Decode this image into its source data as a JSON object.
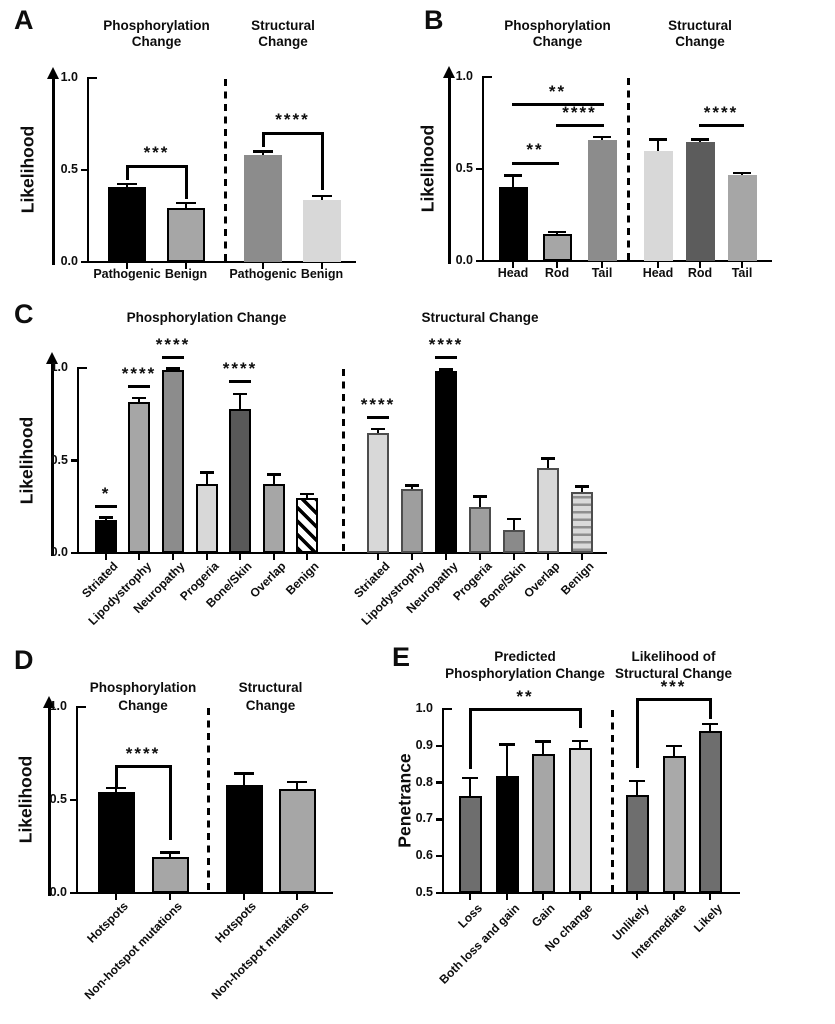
{
  "figure": {
    "description_colors": {
      "black": "#000000",
      "dark_gray": "#5c5c5c",
      "mid_gray": "#8c8c8c",
      "gray": "#a6a6a6",
      "light_gray": "#d8d8d8"
    }
  },
  "chart_data": [
    {
      "panel": "A",
      "type": "bar",
      "ylabel": "Likelihood",
      "ylim": [
        0,
        1
      ],
      "yticks": [
        {
          "v": 1.0,
          "label": "1.0"
        },
        {
          "v": 0.5,
          "label": "0.5"
        },
        {
          "v": 0.0,
          "label": "0.0"
        }
      ],
      "groups": [
        {
          "title_lines": [
            "Phosphorylation",
            "Change"
          ],
          "bars": [
            {
              "label": "Pathogenic",
              "value": 0.41,
              "error": 0.015,
              "fill": "#000000",
              "border": "none"
            },
            {
              "label": "Benign",
              "value": 0.295,
              "error": 0.025,
              "fill": "#a6a6a6",
              "border": "#000000"
            }
          ]
        },
        {
          "title_lines": [
            "Structural",
            "Change"
          ],
          "bars": [
            {
              "label": "Pathogenic",
              "value": 0.58,
              "error": 0.02,
              "fill": "#8c8c8c",
              "border": "none"
            },
            {
              "label": "Benign",
              "value": 0.335,
              "error": 0.025,
              "fill": "#d8d8d8",
              "border": "none"
            }
          ]
        }
      ],
      "annotations": [
        {
          "style": "bracket",
          "stars": "***",
          "group": 0,
          "from": 0,
          "to": 1,
          "y": 0.52,
          "drop_from": 0.445,
          "drop_to": 0.345
        },
        {
          "style": "bracket",
          "stars": "****",
          "group": 1,
          "from": 0,
          "to": 1,
          "y": 0.7,
          "drop_from": 0.625,
          "drop_to": 0.39
        }
      ]
    },
    {
      "panel": "B",
      "type": "bar",
      "ylabel": "Likelihood",
      "ylim": [
        0,
        1
      ],
      "yticks": [
        {
          "v": 1.0,
          "label": "1.0"
        },
        {
          "v": 0.5,
          "label": "0.5"
        },
        {
          "v": 0.0,
          "label": "0.0"
        }
      ],
      "groups": [
        {
          "title_lines": [
            "Phosphorylation",
            "Change"
          ],
          "bars": [
            {
              "label": "Head",
              "value": 0.4,
              "error": 0.065,
              "fill": "#000000",
              "border": "none"
            },
            {
              "label": "Rod",
              "value": 0.145,
              "error": 0.013,
              "fill": "#a6a6a6",
              "border": "#000000"
            },
            {
              "label": "Tail",
              "value": 0.655,
              "error": 0.018,
              "fill": "#8c8c8c",
              "border": "none"
            }
          ]
        },
        {
          "title_lines": [
            "Structural",
            "Change"
          ],
          "bars": [
            {
              "label": "Head",
              "value": 0.6,
              "error": 0.06,
              "fill": "#d8d8d8",
              "border": "none"
            },
            {
              "label": "Rod",
              "value": 0.645,
              "error": 0.016,
              "fill": "#5c5c5c",
              "border": "none"
            },
            {
              "label": "Tail",
              "value": 0.465,
              "error": 0.014,
              "fill": "#a6a6a6",
              "border": "none"
            }
          ]
        }
      ],
      "annotations": [
        {
          "style": "line",
          "stars": "**",
          "group": 0,
          "from": 0,
          "to": 2,
          "y": 0.85
        },
        {
          "style": "line",
          "stars": "****",
          "group": 0,
          "from": 1,
          "to": 2,
          "y": 0.735
        },
        {
          "style": "line",
          "stars": "**",
          "group": 0,
          "from": 0,
          "to": 1,
          "y": 0.53
        },
        {
          "style": "line",
          "stars": "****",
          "group": 1,
          "from": 1,
          "to": 2,
          "y": 0.735
        }
      ]
    },
    {
      "panel": "C",
      "type": "bar",
      "ylabel": "Likelihood",
      "ylim": [
        0,
        1
      ],
      "yticks": [
        {
          "v": 1.0,
          "label": "1.0"
        },
        {
          "v": 0.5,
          "label": "0.5"
        },
        {
          "v": 0.0,
          "label": "0.0"
        }
      ],
      "groups": [
        {
          "title_lines": [
            "Phosphorylation Change"
          ],
          "bars": [
            {
              "label": "Striated",
              "value": 0.18,
              "error": 0.013,
              "fill": "#000000",
              "border": "none"
            },
            {
              "label": "Lipodystrophy",
              "value": 0.815,
              "error": 0.022,
              "fill": "#a6a6a6",
              "border": "#000000"
            },
            {
              "label": "Neuropathy",
              "value": 0.99,
              "error": 0.007,
              "fill": "#8c8c8c",
              "border": "#000000"
            },
            {
              "label": "Progeria",
              "value": 0.375,
              "error": 0.06,
              "fill": "#d8d8d8",
              "border": "#000000"
            },
            {
              "label": "Bone/Skin",
              "value": 0.78,
              "error": 0.08,
              "fill": "#595959",
              "border": "#000000"
            },
            {
              "label": "Overlap",
              "value": 0.375,
              "error": 0.05,
              "fill": "#a6a6a6",
              "border": "#000000"
            },
            {
              "label": "Benign",
              "value": 0.295,
              "error": 0.025,
              "fill": "diagonal-hatch",
              "border": "#000000"
            }
          ]
        },
        {
          "title_lines": [
            "Structural Change"
          ],
          "bars": [
            {
              "label": "Striated",
              "value": 0.65,
              "error": 0.02,
              "fill": "#d8d8d8",
              "border": "#4d4d4d"
            },
            {
              "label": "Lipodystrophy",
              "value": 0.345,
              "error": 0.02,
              "fill": "#9e9e9e",
              "border": "#4d4d4d"
            },
            {
              "label": "Neuropathy",
              "value": 0.985,
              "error": 0.006,
              "fill": "#000000",
              "border": "none"
            },
            {
              "label": "Progeria",
              "value": 0.25,
              "error": 0.055,
              "fill": "#9e9e9e",
              "border": "#4d4d4d"
            },
            {
              "label": "Bone/Skin",
              "value": 0.125,
              "error": 0.06,
              "fill": "#8a8a8a",
              "border": "#4d4d4d"
            },
            {
              "label": "Overlap",
              "value": 0.46,
              "error": 0.05,
              "fill": "#d8d8d8",
              "border": "#4d4d4d"
            },
            {
              "label": "Benign",
              "value": 0.33,
              "error": 0.03,
              "fill": "horizontal-stripes",
              "border": "#4d4d4d"
            }
          ]
        }
      ],
      "annotations": [
        {
          "style": "star",
          "stars": "*",
          "group": 0,
          "bar": 0,
          "y": 0.25
        },
        {
          "style": "star",
          "stars": "****",
          "group": 0,
          "bar": 1,
          "y": 0.9
        },
        {
          "style": "star",
          "stars": "****",
          "group": 0,
          "bar": 2,
          "y": 1.055
        },
        {
          "style": "star",
          "stars": "****",
          "group": 0,
          "bar": 4,
          "y": 0.925
        },
        {
          "style": "star",
          "stars": "****",
          "group": 1,
          "bar": 0,
          "y": 0.73
        },
        {
          "style": "star",
          "stars": "****",
          "group": 1,
          "bar": 2,
          "y": 1.055
        }
      ]
    },
    {
      "panel": "D",
      "type": "bar",
      "ylabel": "Likelihood",
      "ylim": [
        0,
        1
      ],
      "yticks": [
        {
          "v": 1.0,
          "label": "1.0"
        },
        {
          "v": 0.5,
          "label": "0.5"
        },
        {
          "v": 0.0,
          "label": "0.0"
        }
      ],
      "groups": [
        {
          "title_lines": [
            "Phosphorylation",
            "Change"
          ],
          "bars": [
            {
              "label": "Hotspots",
              "value": 0.545,
              "error": 0.02,
              "fill": "#000000",
              "border": "none"
            },
            {
              "label": "Non-hotspot mutations",
              "value": 0.195,
              "error": 0.022,
              "fill": "#a6a6a6",
              "border": "#000000"
            }
          ]
        },
        {
          "title_lines": [
            "Structural",
            "Change"
          ],
          "bars": [
            {
              "label": "Hotspots",
              "value": 0.58,
              "error": 0.062,
              "fill": "#000000",
              "border": "none"
            },
            {
              "label": "Non-hotspot mutations",
              "value": 0.56,
              "error": 0.036,
              "fill": "#a6a6a6",
              "border": "#000000"
            }
          ]
        }
      ],
      "annotations": [
        {
          "style": "bracket",
          "stars": "****",
          "group": 0,
          "from": 0,
          "to": 1,
          "y": 0.68,
          "drop_from": 0.557,
          "drop_to": 0.285
        }
      ]
    },
    {
      "panel": "E",
      "type": "bar",
      "ylabel": "Penetrance",
      "ylim": [
        0.5,
        1.0
      ],
      "yticks": [
        {
          "v": 1.0,
          "label": "1.0"
        },
        {
          "v": 0.9,
          "label": "0.9"
        },
        {
          "v": 0.8,
          "label": "0.8"
        },
        {
          "v": 0.7,
          "label": "0.7"
        },
        {
          "v": 0.6,
          "label": "0.6"
        },
        {
          "v": 0.5,
          "label": "0.5"
        }
      ],
      "groups": [
        {
          "title_lines": [
            "Predicted",
            "Phosphorylation Change"
          ],
          "bars": [
            {
              "label": "Loss",
              "value": 0.763,
              "error": 0.05,
              "fill": "#6e6e6e",
              "border": "#000000"
            },
            {
              "label": "Both loss and gain",
              "value": 0.818,
              "error": 0.085,
              "fill": "#000000",
              "border": "none"
            },
            {
              "label": "Gain",
              "value": 0.877,
              "error": 0.035,
              "fill": "#a6a6a6",
              "border": "#000000"
            },
            {
              "label": "No change",
              "value": 0.895,
              "error": 0.018,
              "fill": "#d8d8d8",
              "border": "#000000"
            }
          ]
        },
        {
          "title_lines": [
            "Likelihood of",
            "Structural Change"
          ],
          "bars": [
            {
              "label": "Unlikely",
              "value": 0.766,
              "error": 0.038,
              "fill": "#6e6e6e",
              "border": "#000000"
            },
            {
              "label": "Intermediate",
              "value": 0.872,
              "error": 0.028,
              "fill": "#a9a9a9",
              "border": "#000000"
            },
            {
              "label": "Likely",
              "value": 0.941,
              "error": 0.018,
              "fill": "#6e6e6e",
              "border": "#000000"
            }
          ]
        }
      ],
      "annotations": [
        {
          "style": "bracket",
          "stars": "**",
          "group": 0,
          "from": 0,
          "to": 3,
          "y": 0.998,
          "drop_from": 0.838,
          "drop_to": 0.948
        },
        {
          "style": "bracket",
          "stars": "***",
          "group": 1,
          "from": 0,
          "to": 2,
          "y": 1.025,
          "drop_from": 0.84,
          "drop_to": 0.972
        }
      ]
    }
  ]
}
